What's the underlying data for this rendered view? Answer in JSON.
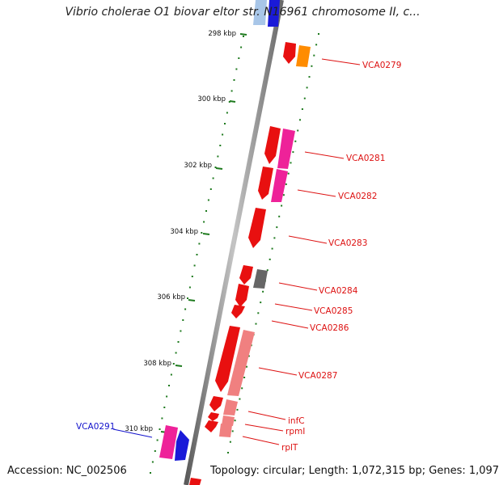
{
  "title": "Vibrio cholerae O1 biovar eltor str. N16961 chromosome II, c...",
  "colors": {
    "backbone": "#888888",
    "tick": "#1e7a1e",
    "label_red": "#dd1111",
    "label_blue": "#1111cc"
  },
  "position_labels": [
    "298 kbp",
    "300 kbp",
    "302 kbp",
    "304 kbp",
    "306 kbp",
    "308 kbp",
    "310 kbp"
  ],
  "genes": [
    {
      "label": "VCA0279",
      "color": "#dd1111"
    },
    {
      "label": "VCA0281",
      "color": "#dd1111"
    },
    {
      "label": "VCA0282",
      "color": "#dd1111"
    },
    {
      "label": "VCA0283",
      "color": "#dd1111"
    },
    {
      "label": "VCA0284",
      "color": "#dd1111"
    },
    {
      "label": "VCA0285",
      "color": "#dd1111"
    },
    {
      "label": "VCA0286",
      "color": "#dd1111"
    },
    {
      "label": "VCA0287",
      "color": "#dd1111"
    },
    {
      "label": "infC",
      "color": "#dd1111"
    },
    {
      "label": "rpmI",
      "color": "#dd1111"
    },
    {
      "label": "rplT",
      "color": "#dd1111"
    },
    {
      "label": "VCA0291",
      "color": "#1111cc"
    }
  ],
  "footer": {
    "accession": "Accession: NC_002506",
    "stats": "Topology: circular; Length: 1,072,315 bp; Genes: 1,097"
  }
}
